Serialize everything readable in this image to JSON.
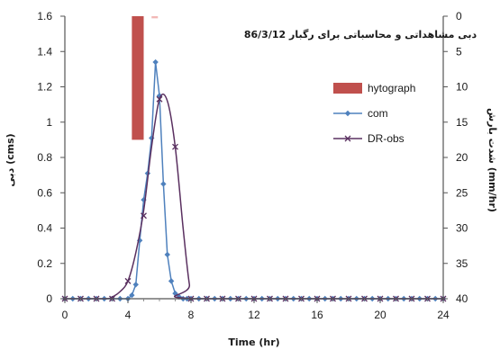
{
  "chart_data": {
    "type": "line",
    "title": "دبی مشاهداتی و محاسباتی برای رگبار 86/3/12",
    "xlabel": "Time (hr)",
    "ylabel": "دبی (cms)",
    "y2label": "شدت بارش (mm/hr)",
    "xlim": [
      0,
      24
    ],
    "ylim": [
      0,
      1.6
    ],
    "y2lim": [
      0,
      40
    ],
    "y2_reversed": true,
    "x_ticks": [
      0,
      4,
      8,
      12,
      16,
      20,
      24
    ],
    "x_tick_labels": [
      "0",
      "4",
      "8",
      "12",
      "16",
      "20",
      "24"
    ],
    "y_ticks": [
      0,
      0.2,
      0.4,
      0.6,
      0.8,
      1,
      1.2,
      1.4,
      1.6
    ],
    "y_tick_labels": [
      "0",
      "0.2",
      "0.4",
      "0.6",
      "0.8",
      "1",
      "1.2",
      "1.4",
      "1.6"
    ],
    "y2_ticks": [
      0,
      5,
      10,
      15,
      20,
      25,
      30,
      35,
      40
    ],
    "y2_tick_labels": [
      "0",
      "5",
      "10",
      "15",
      "20",
      "25",
      "30",
      "35",
      "40"
    ],
    "grid": false,
    "legend_position": "right",
    "series": [
      {
        "name": "hytograph",
        "kind": "bar",
        "axis": "y2",
        "color": "#c0504d",
        "bars": [
          {
            "x_start": 4.25,
            "x_end": 5.0,
            "value": 17.5
          },
          {
            "x_start": 5.5,
            "x_end": 5.9,
            "value": 0.3
          }
        ]
      },
      {
        "name": "com",
        "kind": "line",
        "axis": "y",
        "marker": "diamond",
        "color": "#4f81bd",
        "x": [
          0,
          0.5,
          1,
          1.5,
          2,
          2.5,
          3,
          3.5,
          4,
          4.25,
          4.5,
          4.75,
          5,
          5.25,
          5.5,
          5.75,
          6,
          6.25,
          6.5,
          6.75,
          7,
          7.25,
          7.5,
          7.75,
          8,
          8.5,
          9,
          9.5,
          10,
          10.5,
          11,
          11.5,
          12,
          12.5,
          13,
          13.5,
          14,
          14.5,
          15,
          15.5,
          16,
          16.5,
          17,
          17.5,
          18,
          18.5,
          19,
          19.5,
          20,
          20.5,
          21,
          21.5,
          22,
          22.5,
          23,
          23.5,
          24
        ],
        "y": [
          0,
          0,
          0,
          0,
          0,
          0,
          0,
          0,
          0,
          0.02,
          0.08,
          0.33,
          0.56,
          0.71,
          0.91,
          1.34,
          1.15,
          0.65,
          0.25,
          0.1,
          0.03,
          0.01,
          0,
          0,
          0,
          0,
          0,
          0,
          0,
          0,
          0,
          0,
          0,
          0,
          0,
          0,
          0,
          0,
          0,
          0,
          0,
          0,
          0,
          0,
          0,
          0,
          0,
          0,
          0,
          0,
          0,
          0,
          0,
          0,
          0,
          0,
          0
        ]
      },
      {
        "name": "DR-obs",
        "kind": "line",
        "axis": "y",
        "marker": "x",
        "color": "#5a3060",
        "x": [
          0,
          1,
          2,
          3,
          4,
          5,
          6,
          7,
          8,
          9,
          10,
          11,
          12,
          13,
          14,
          15,
          16,
          17,
          18,
          19,
          20,
          21,
          22,
          23,
          24
        ],
        "y": [
          0,
          0,
          0,
          0,
          0.1,
          0.47,
          1.13,
          0.86,
          0,
          0,
          0,
          0,
          0,
          0,
          0,
          0,
          0,
          0,
          0,
          0,
          0,
          0,
          0,
          0,
          0
        ],
        "smooth_curve": {
          "x": [
            0,
            2.5,
            3,
            3.5,
            4,
            4.5,
            5,
            5.5,
            6,
            6.5,
            7,
            7.5,
            7.9,
            8.2,
            24
          ],
          "y": [
            0,
            0,
            0.01,
            0.04,
            0.1,
            0.26,
            0.5,
            0.86,
            1.13,
            1.12,
            0.86,
            0.4,
            0.08,
            0,
            0
          ]
        }
      }
    ]
  }
}
